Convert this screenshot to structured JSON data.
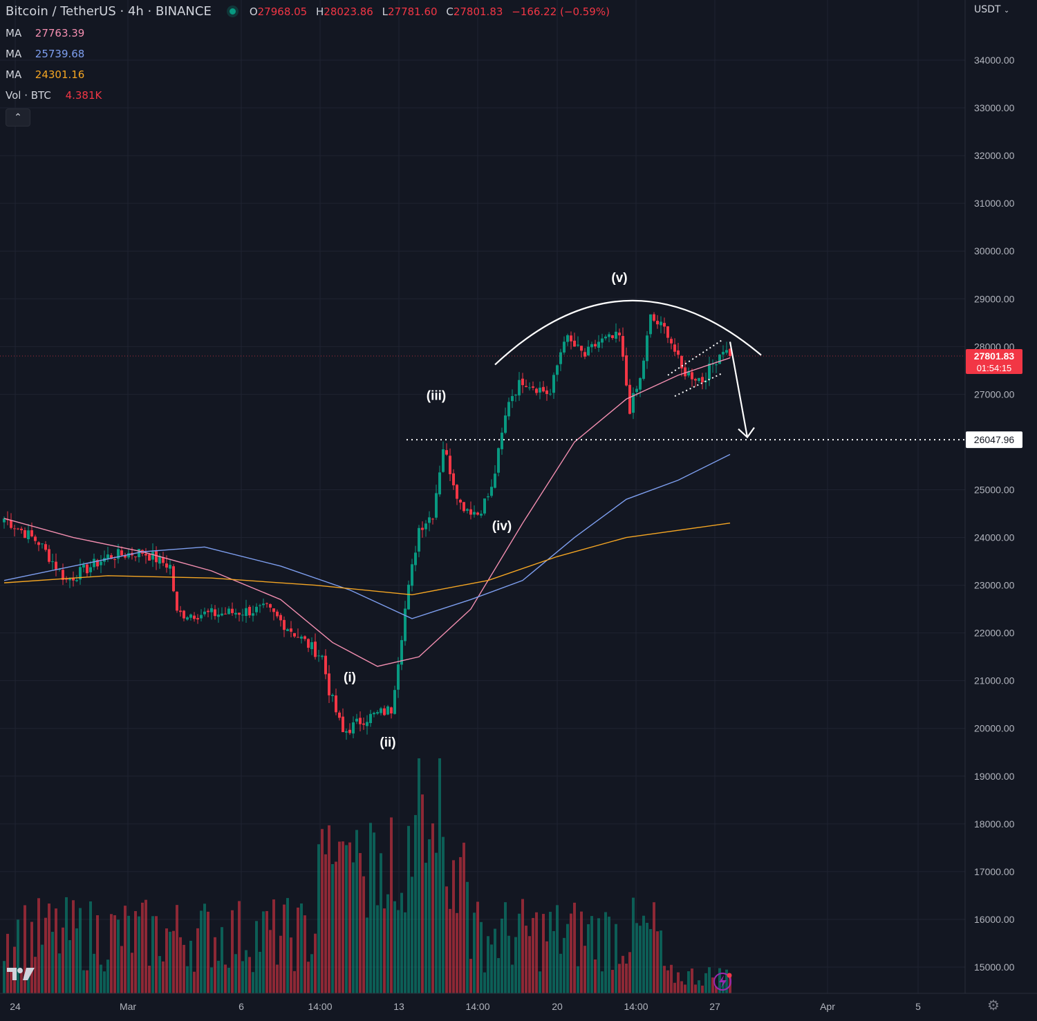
{
  "header": {
    "symbol": "Bitcoin / TetherUS · 4h · BINANCE",
    "ohlc": [
      {
        "key": "O",
        "value": "27968.05"
      },
      {
        "key": "H",
        "value": "28023.86"
      },
      {
        "key": "L",
        "value": "27781.60"
      },
      {
        "key": "C",
        "value": "27801.83"
      }
    ],
    "change": "−166.22 (−0.59%)",
    "collapse_icon": "chevron-up-icon"
  },
  "indicators": [
    {
      "label": "MA",
      "value": "27763.39",
      "color": "#f48fb1"
    },
    {
      "label": "MA",
      "value": "25739.68",
      "color": "#7e9ff0"
    },
    {
      "label": "MA",
      "value": "24301.16",
      "color": "#f5a623"
    },
    {
      "label": "Vol · BTC",
      "value": "4.381K",
      "color": "#f23645"
    }
  ],
  "price_axis": {
    "currency": "USDT",
    "ticks": [
      "34000.00",
      "33000.00",
      "32000.00",
      "31000.00",
      "30000.00",
      "29000.00",
      "28000.00",
      "27000.00",
      "25000.00",
      "24000.00",
      "23000.00",
      "22000.00",
      "21000.00",
      "20000.00",
      "19000.00",
      "18000.00",
      "17000.00",
      "16000.00",
      "15000.00"
    ],
    "last_price": "27801.83",
    "countdown": "01:54:15",
    "level_price": "26047.96"
  },
  "time_axis": {
    "ticks": [
      "24",
      "Mar",
      "6",
      "14:00",
      "13",
      "14:00",
      "20",
      "14:00",
      "27",
      "Apr",
      "5"
    ]
  },
  "annotations": [
    "(i)",
    "(ii)",
    "(iii)",
    "(iv)",
    "(v)"
  ],
  "colors": {
    "background": "#131722",
    "up": "#089981",
    "down": "#f23645",
    "grid": "#1f2331",
    "ma_fast": "#f48fb1",
    "ma_mid": "#7e9ff0",
    "ma_slow": "#f5a623"
  },
  "chart_data": {
    "type": "candlestick",
    "interval": "4h",
    "y_range": [
      14500,
      35000
    ],
    "y_tick_step": 1000,
    "key_level": 26047.96,
    "last_price": 27801.83,
    "waypoints": [
      {
        "t": 0,
        "price": 24400
      },
      {
        "t": 10,
        "price": 23900
      },
      {
        "t": 18,
        "price": 23100
      },
      {
        "t": 30,
        "price": 23600
      },
      {
        "t": 40,
        "price": 23700
      },
      {
        "t": 48,
        "price": 23400
      },
      {
        "t": 50,
        "price": 22400
      },
      {
        "t": 62,
        "price": 22400
      },
      {
        "t": 76,
        "price": 22500
      },
      {
        "t": 84,
        "price": 22000
      },
      {
        "t": 92,
        "price": 21500
      },
      {
        "t": 94,
        "price": 20800
      },
      {
        "t": 98,
        "price": 19900
      },
      {
        "t": 104,
        "price": 20200
      },
      {
        "t": 108,
        "price": 20300
      },
      {
        "t": 112,
        "price": 20400
      },
      {
        "t": 116,
        "price": 22500
      },
      {
        "t": 120,
        "price": 24200
      },
      {
        "t": 124,
        "price": 24500
      },
      {
        "t": 127,
        "price": 25900
      },
      {
        "t": 132,
        "price": 24700
      },
      {
        "t": 137,
        "price": 24500
      },
      {
        "t": 141,
        "price": 25000
      },
      {
        "t": 146,
        "price": 26900
      },
      {
        "t": 150,
        "price": 27300
      },
      {
        "t": 158,
        "price": 27000
      },
      {
        "t": 162,
        "price": 28200
      },
      {
        "t": 168,
        "price": 27800
      },
      {
        "t": 172,
        "price": 28100
      },
      {
        "t": 178,
        "price": 28200
      },
      {
        "t": 181,
        "price": 26700
      },
      {
        "t": 184,
        "price": 27300
      },
      {
        "t": 187,
        "price": 28600
      },
      {
        "t": 192,
        "price": 28300
      },
      {
        "t": 196,
        "price": 27500
      },
      {
        "t": 202,
        "price": 27300
      },
      {
        "t": 208,
        "price": 27970
      },
      {
        "t": 210,
        "price": 27801.83
      }
    ],
    "ma_series": [
      {
        "name": "MA 27763.39",
        "points": [
          [
            0,
            24400
          ],
          [
            20,
            24000
          ],
          [
            40,
            23700
          ],
          [
            60,
            23300
          ],
          [
            80,
            22700
          ],
          [
            95,
            21800
          ],
          [
            108,
            21300
          ],
          [
            120,
            21500
          ],
          [
            135,
            22500
          ],
          [
            150,
            24300
          ],
          [
            165,
            26000
          ],
          [
            180,
            26900
          ],
          [
            195,
            27400
          ],
          [
            210,
            27763
          ]
        ]
      },
      {
        "name": "MA 25739.68",
        "points": [
          [
            0,
            23100
          ],
          [
            20,
            23400
          ],
          [
            40,
            23700
          ],
          [
            58,
            23800
          ],
          [
            80,
            23400
          ],
          [
            100,
            22900
          ],
          [
            118,
            22300
          ],
          [
            135,
            22700
          ],
          [
            150,
            23100
          ],
          [
            165,
            24000
          ],
          [
            180,
            24800
          ],
          [
            195,
            25200
          ],
          [
            210,
            25740
          ]
        ]
      },
      {
        "name": "MA 24301.16",
        "points": [
          [
            0,
            23050
          ],
          [
            30,
            23200
          ],
          [
            60,
            23150
          ],
          [
            90,
            23000
          ],
          [
            118,
            22800
          ],
          [
            140,
            23100
          ],
          [
            160,
            23600
          ],
          [
            180,
            24000
          ],
          [
            210,
            24301
          ]
        ]
      }
    ]
  }
}
